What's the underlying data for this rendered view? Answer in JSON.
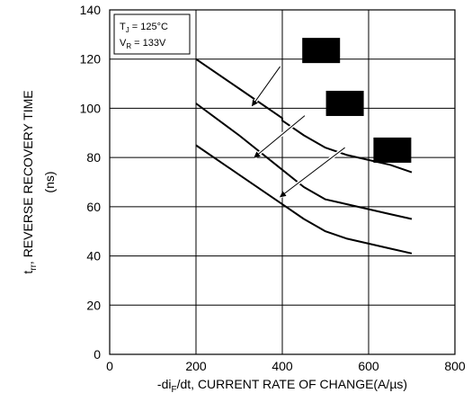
{
  "chart_data": {
    "type": "line",
    "xlabel": {
      "main": "-di",
      "sub": "F",
      "rest": "/dt, CURRENT RATE OF CHANGE(A/µs)"
    },
    "ylabel": {
      "line1_pre": "t",
      "line1_sub": "rr",
      "line1_post": ", REVERSE RECOVERY TIME",
      "line2": "(ns)"
    },
    "xlim": [
      0,
      800
    ],
    "ylim": [
      0,
      140
    ],
    "x_ticks": [
      "0",
      "200",
      "400",
      "600",
      "800"
    ],
    "y_ticks": [
      "0",
      "20",
      "40",
      "60",
      "80",
      "100",
      "120",
      "140"
    ],
    "grid": true,
    "legend": {
      "position": "top-left",
      "line1": {
        "main": "T",
        "sub": "J",
        "rest": " = 125°C"
      },
      "line2": {
        "main": "V",
        "sub": "R",
        "rest": " = 133V"
      }
    },
    "series": [
      {
        "x": [
          200,
          300,
          400,
          400,
          450,
          500,
          550,
          600,
          650,
          700
        ],
        "y": [
          120,
          108,
          96,
          95,
          89,
          84,
          81,
          79,
          77,
          74
        ]
      },
      {
        "x": [
          200,
          300,
          400,
          450,
          500,
          550,
          600,
          650,
          700
        ],
        "y": [
          102,
          89,
          75,
          68,
          63,
          61,
          59,
          57,
          55
        ]
      },
      {
        "x": [
          200,
          300,
          400,
          450,
          500,
          550,
          600,
          650,
          700
        ],
        "y": [
          85,
          73,
          61,
          55,
          50,
          47,
          45,
          43,
          41
        ]
      }
    ],
    "annotations": [
      {
        "box_x": 490,
        "box_y": 123.5,
        "arrow_from": [
          395,
          117
        ],
        "arrow_to": [
          330,
          101
        ]
      },
      {
        "box_x": 545,
        "box_y": 102,
        "arrow_from": [
          452,
          97
        ],
        "arrow_to": [
          335,
          80
        ]
      },
      {
        "box_x": 655,
        "box_y": 83,
        "arrow_from": [
          545,
          84
        ],
        "arrow_to": [
          395,
          64
        ]
      }
    ]
  }
}
